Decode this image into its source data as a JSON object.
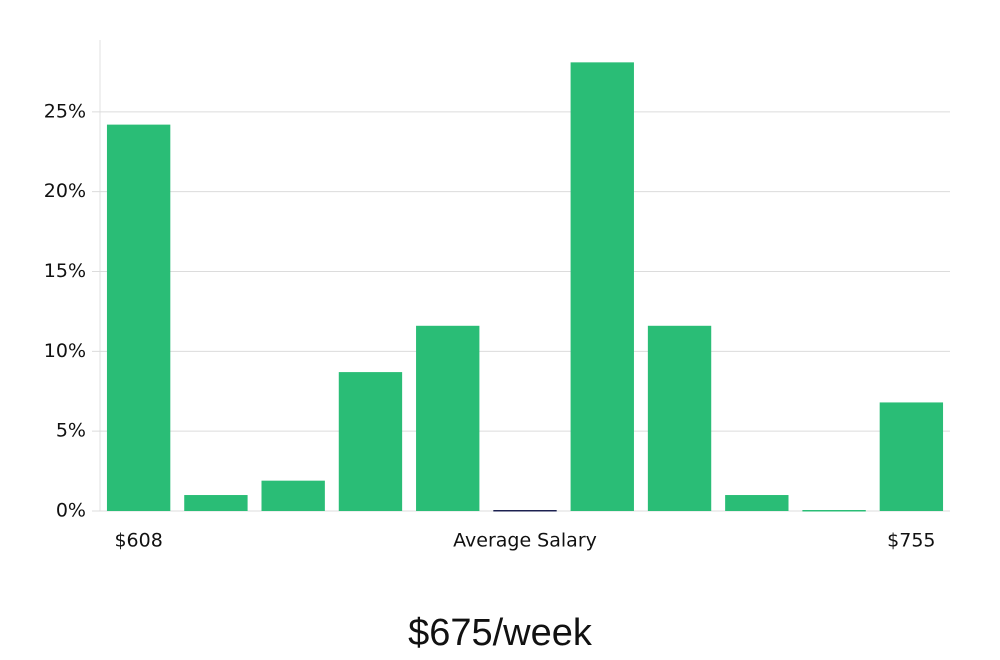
{
  "chart_data": {
    "type": "bar",
    "caption": "$675/week",
    "categories": [
      "$608",
      null,
      null,
      null,
      null,
      "Average Salary",
      null,
      null,
      null,
      null,
      "$755"
    ],
    "values": [
      24.2,
      1.0,
      1.9,
      8.7,
      11.6,
      0,
      28.1,
      11.6,
      1.0,
      0,
      6.8
    ],
    "colors": [
      "#2abd76",
      "#2abd76",
      "#2abd76",
      "#2abd76",
      "#2abd76",
      "#1c2150",
      "#2abd76",
      "#2abd76",
      "#2abd76",
      "#2abd76",
      "#2abd76"
    ],
    "ylim": [
      0,
      29.5
    ],
    "yticks": [
      {
        "value": 0,
        "label": "0%"
      },
      {
        "value": 5,
        "label": "5%"
      },
      {
        "value": 10,
        "label": "10%"
      },
      {
        "value": 15,
        "label": "15%"
      },
      {
        "value": 20,
        "label": "20%"
      },
      {
        "value": 25,
        "label": "25%"
      }
    ],
    "grid": true
  }
}
